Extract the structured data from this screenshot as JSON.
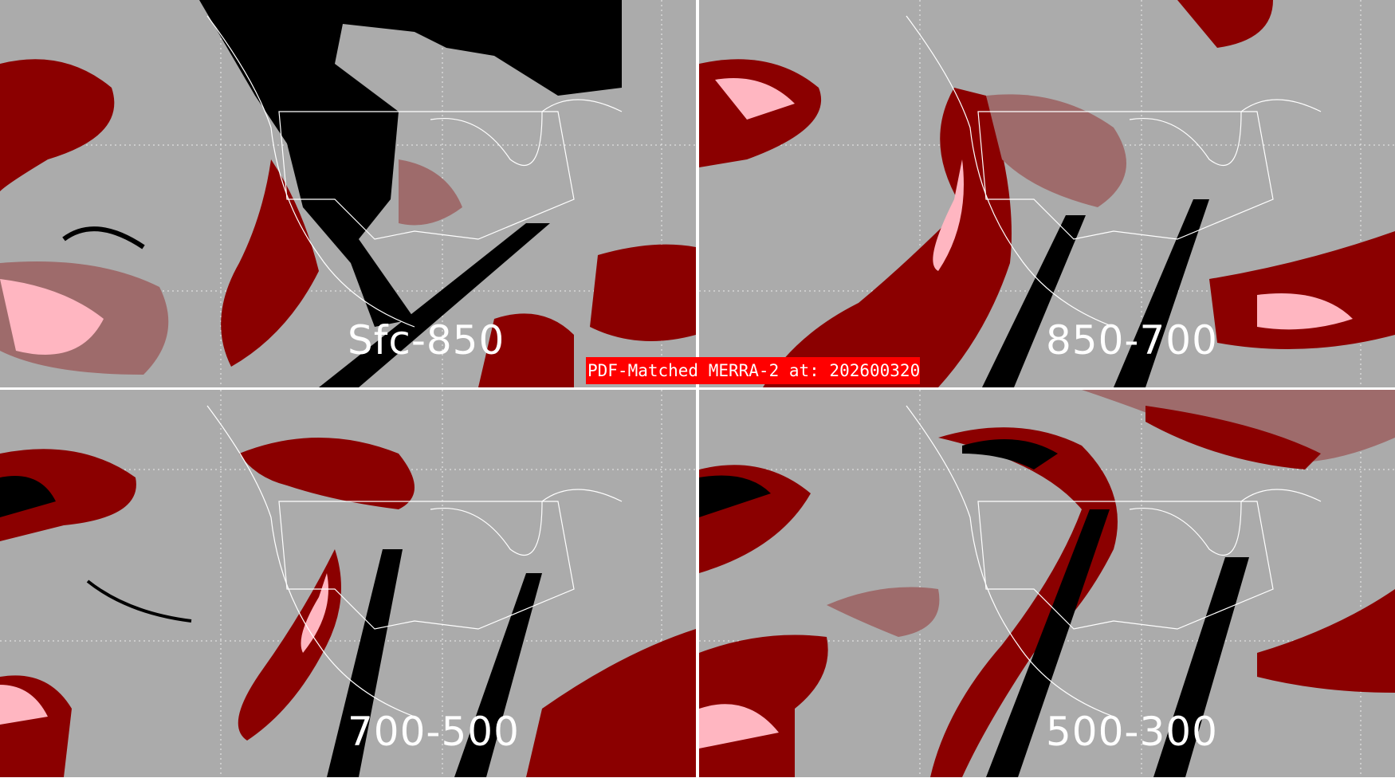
{
  "title": "PDF-Matched MERRA-2 at: 202600320",
  "panels": [
    {
      "label": "Sfc-850"
    },
    {
      "label": "850-700"
    },
    {
      "label": "700-500"
    },
    {
      "label": "500-300"
    }
  ],
  "colors": {
    "background": "#ababab",
    "dark_red": "#8b0000",
    "muted_red": "#9e6b6b",
    "pink": "#ffb6c1",
    "bright_red": "#ff0000",
    "no_data": "#000000",
    "boundaries": "#ffffff"
  }
}
